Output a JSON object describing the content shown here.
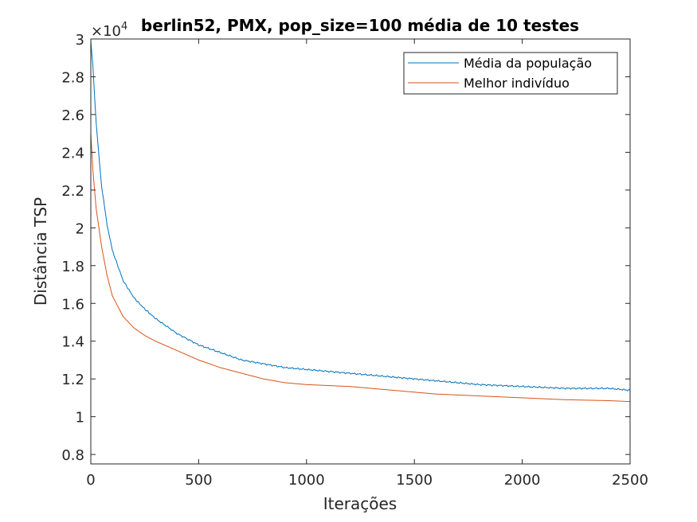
{
  "chart_data": {
    "type": "line",
    "title": "berlin52, PMX, pop_size=100 média de 10 testes",
    "xlabel": "Iterações",
    "ylabel": "Distância TSP",
    "y_exponent_label": "×10",
    "y_exponent_power": "4",
    "xlim": [
      0,
      2500
    ],
    "ylim": [
      0.75,
      3.0
    ],
    "x_ticks": [
      0,
      500,
      1000,
      1500,
      2000,
      2500
    ],
    "x_tick_labels": [
      "0",
      "500",
      "1000",
      "1500",
      "2000",
      "2500"
    ],
    "y_ticks": [
      0.8,
      1.0,
      1.2,
      1.4,
      1.6,
      1.8,
      2.0,
      2.2,
      2.4,
      2.6,
      2.8,
      3.0
    ],
    "y_tick_labels": [
      "0.8",
      "1",
      "1.2",
      "1.4",
      "1.6",
      "1.8",
      "2",
      "2.2",
      "2.4",
      "2.6",
      "2.8",
      "3"
    ],
    "grid": false,
    "legend_position": "top-right",
    "x": [
      0,
      10,
      25,
      50,
      75,
      100,
      150,
      200,
      250,
      300,
      400,
      500,
      600,
      700,
      800,
      900,
      1000,
      1200,
      1400,
      1500,
      1600,
      1800,
      2000,
      2200,
      2400,
      2500
    ],
    "series": [
      {
        "name": "Média da população",
        "color": "#0072BD",
        "values": [
          2.99,
          2.85,
          2.55,
          2.22,
          2.02,
          1.88,
          1.72,
          1.63,
          1.57,
          1.52,
          1.44,
          1.38,
          1.34,
          1.3,
          1.28,
          1.26,
          1.25,
          1.23,
          1.21,
          1.2,
          1.19,
          1.17,
          1.16,
          1.15,
          1.15,
          1.14
        ]
      },
      {
        "name": "Melhor indivíduo",
        "color": "#D95319",
        "values": [
          2.5,
          2.3,
          2.1,
          1.9,
          1.75,
          1.64,
          1.53,
          1.47,
          1.43,
          1.4,
          1.35,
          1.3,
          1.26,
          1.23,
          1.2,
          1.18,
          1.17,
          1.16,
          1.14,
          1.13,
          1.12,
          1.11,
          1.1,
          1.09,
          1.085,
          1.08
        ]
      }
    ]
  }
}
